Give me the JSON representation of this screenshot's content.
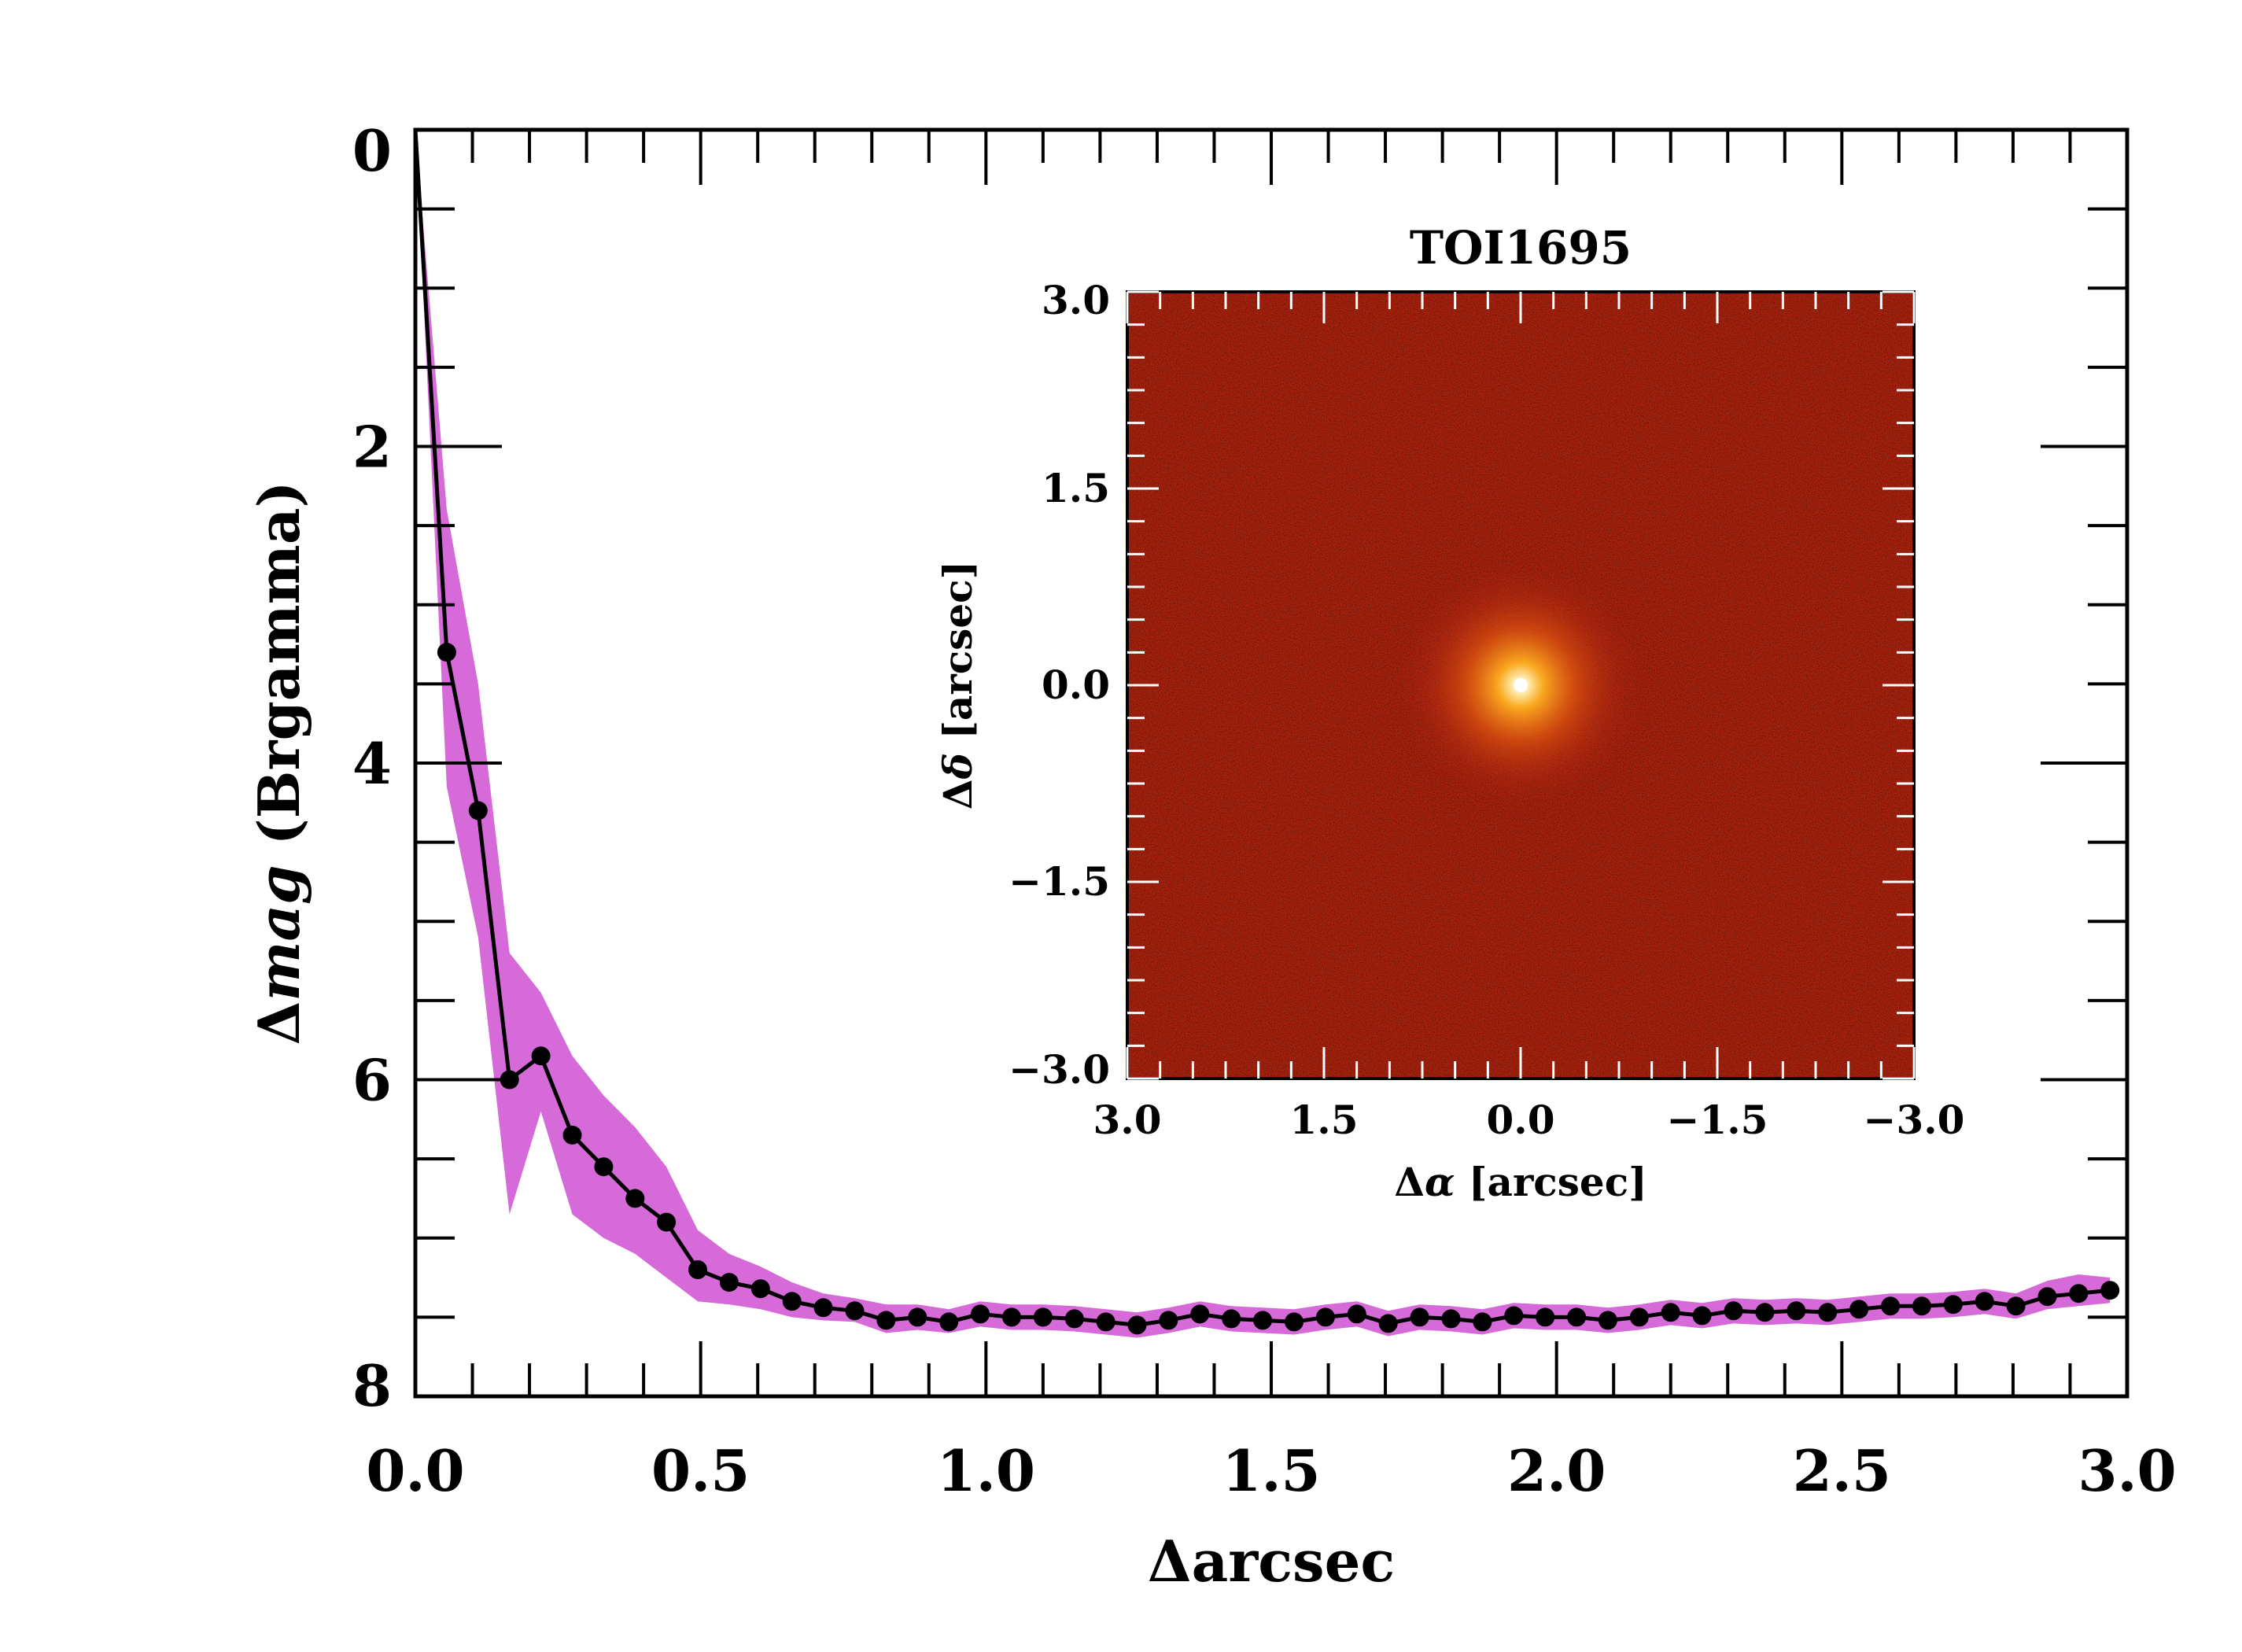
{
  "chart_data": [
    {
      "type": "line",
      "title": "",
      "xlabel": "Δarcsec",
      "ylabel": "Δmag (Brgamma)",
      "ylabel_symbol": "Δ",
      "ylabel_italic": "mag",
      "ylabel_rest": " (Brgamma)",
      "xlim": [
        0,
        3.0
      ],
      "ylim": [
        8,
        0
      ],
      "y_inverted": true,
      "grid": false,
      "x_ticks": [
        "0.0",
        "0.5",
        "1.0",
        "1.5",
        "2.0",
        "2.5",
        "3.0"
      ],
      "y_ticks": [
        "0",
        "2",
        "4",
        "6",
        "8"
      ],
      "band_color": "#d66ad8",
      "line_color": "#000000",
      "series": [
        {
          "x": [
            0.0,
            0.055,
            0.11,
            0.165,
            0.22,
            0.275,
            0.33,
            0.385,
            0.44,
            0.495,
            0.55,
            0.605,
            0.66,
            0.715,
            0.77,
            0.825,
            0.88,
            0.935,
            0.99,
            1.045,
            1.1,
            1.155,
            1.21,
            1.265,
            1.32,
            1.375,
            1.43,
            1.485,
            1.54,
            1.595,
            1.65,
            1.705,
            1.76,
            1.815,
            1.87,
            1.925,
            1.98,
            2.035,
            2.09,
            2.145,
            2.2,
            2.255,
            2.31,
            2.365,
            2.42,
            2.475,
            2.53,
            2.585,
            2.64,
            2.695,
            2.75,
            2.805,
            2.86,
            2.915,
            2.97
          ],
          "y": [
            0.0,
            3.3,
            4.3,
            6.0,
            5.85,
            6.35,
            6.55,
            6.75,
            6.9,
            7.2,
            7.28,
            7.32,
            7.4,
            7.44,
            7.46,
            7.52,
            7.5,
            7.53,
            7.48,
            7.5,
            7.5,
            7.51,
            7.53,
            7.55,
            7.52,
            7.48,
            7.51,
            7.52,
            7.53,
            7.5,
            7.48,
            7.54,
            7.5,
            7.51,
            7.53,
            7.49,
            7.5,
            7.5,
            7.52,
            7.5,
            7.47,
            7.49,
            7.46,
            7.47,
            7.46,
            7.47,
            7.45,
            7.43,
            7.43,
            7.42,
            7.4,
            7.43,
            7.37,
            7.35,
            7.33
          ],
          "lower": [
            0.0,
            2.4,
            3.5,
            5.2,
            5.45,
            5.85,
            6.1,
            6.3,
            6.55,
            6.95,
            7.1,
            7.18,
            7.28,
            7.35,
            7.38,
            7.42,
            7.42,
            7.45,
            7.4,
            7.42,
            7.42,
            7.43,
            7.45,
            7.47,
            7.44,
            7.4,
            7.43,
            7.44,
            7.45,
            7.42,
            7.4,
            7.46,
            7.42,
            7.43,
            7.45,
            7.41,
            7.42,
            7.42,
            7.44,
            7.42,
            7.39,
            7.41,
            7.38,
            7.39,
            7.38,
            7.39,
            7.37,
            7.35,
            7.35,
            7.34,
            7.32,
            7.35,
            7.27,
            7.23,
            7.25
          ],
          "upper": [
            0.0,
            4.15,
            5.1,
            6.85,
            6.2,
            6.85,
            7.0,
            7.1,
            7.25,
            7.4,
            7.42,
            7.45,
            7.5,
            7.52,
            7.53,
            7.6,
            7.58,
            7.6,
            7.56,
            7.58,
            7.58,
            7.59,
            7.61,
            7.63,
            7.6,
            7.56,
            7.59,
            7.6,
            7.61,
            7.58,
            7.56,
            7.62,
            7.58,
            7.59,
            7.61,
            7.57,
            7.58,
            7.58,
            7.6,
            7.58,
            7.55,
            7.57,
            7.54,
            7.55,
            7.54,
            7.55,
            7.53,
            7.51,
            7.51,
            7.5,
            7.48,
            7.51,
            7.45,
            7.43,
            7.41
          ]
        }
      ]
    },
    {
      "type": "heatmap",
      "title": "TOI1695",
      "xlabel": "Δα [arcsec]",
      "xlabel_symbol": "Δ",
      "xlabel_italic": "α",
      "xlabel_rest": " [arcsec]",
      "ylabel": "Δδ [arcsec]",
      "ylabel_symbol": "Δ",
      "ylabel_italic": "δ",
      "ylabel_rest": " [arcsec]",
      "xlim": [
        3.0,
        -3.0
      ],
      "ylim": [
        -3.0,
        3.0
      ],
      "x_ticks": [
        "3.0",
        "1.5",
        "0.0",
        "−1.5",
        "−3.0"
      ],
      "y_ticks": [
        "3.0",
        "1.5",
        "0.0",
        "−1.5",
        "−3.0"
      ],
      "colormap": "red-temperature",
      "peak_at": [
        0.0,
        0.0
      ]
    }
  ]
}
